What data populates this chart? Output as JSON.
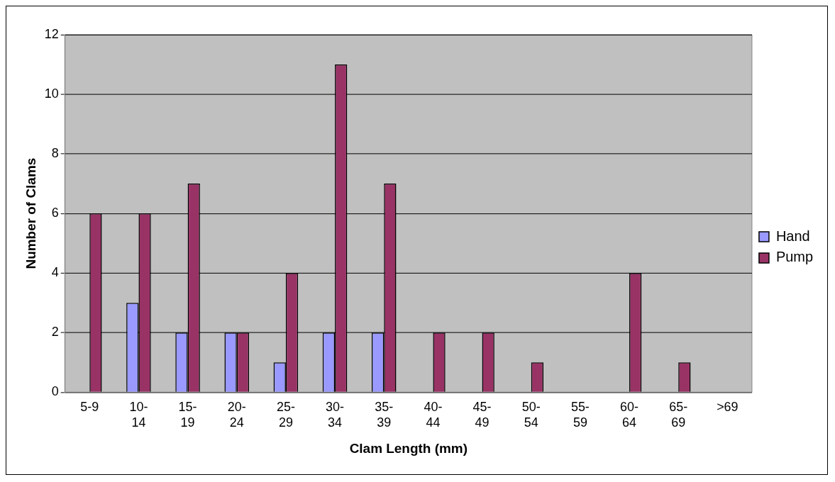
{
  "chart_data": {
    "type": "bar",
    "xlabel": "Clam Length (mm)",
    "ylabel": "Number of Clams",
    "categories": [
      "5-9",
      "10-14",
      "15-19",
      "20-24",
      "25-29",
      "30-34",
      "35-39",
      "40-44",
      "45-49",
      "50-54",
      "55-59",
      "60-64",
      "65-69",
      ">69"
    ],
    "series": [
      {
        "name": "Hand",
        "color": "#9999ff",
        "values": [
          0,
          3,
          2,
          2,
          1,
          2,
          2,
          0,
          0,
          0,
          0,
          0,
          0,
          0
        ]
      },
      {
        "name": "Pump",
        "color": "#993366",
        "values": [
          6,
          6,
          7,
          2,
          4,
          11,
          7,
          2,
          2,
          1,
          0,
          4,
          1,
          0
        ]
      }
    ],
    "ylim": [
      0,
      12
    ],
    "yticks": [
      0,
      2,
      4,
      6,
      8,
      10,
      12
    ],
    "grid": "y",
    "legend": "right"
  }
}
